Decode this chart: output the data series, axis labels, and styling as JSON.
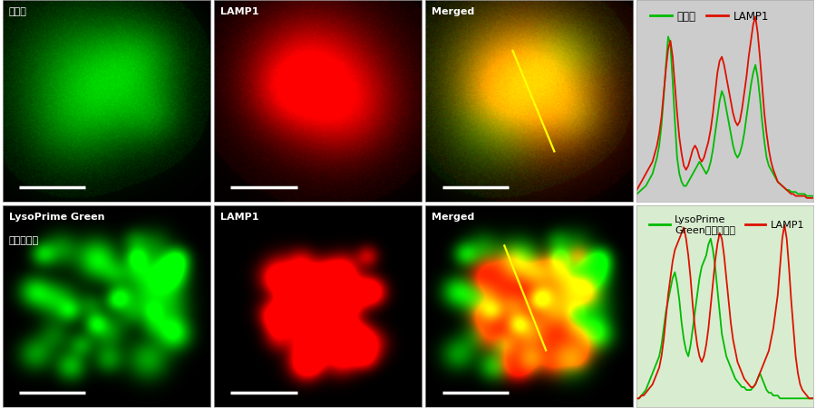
{
  "top_bg": "#cccccc",
  "bottom_bg": "#d8ecd0",
  "top_legend": {
    "green_label": "既存品",
    "red_label": "LAMP1"
  },
  "bottom_legend": {
    "green_label": "LysoPrime\nGreen（本製品）",
    "red_label": "LAMP1"
  },
  "top_green_line": [
    4,
    5,
    6,
    7,
    8,
    10,
    12,
    14,
    18,
    22,
    28,
    38,
    52,
    68,
    82,
    78,
    60,
    40,
    22,
    14,
    10,
    8,
    8,
    10,
    12,
    14,
    16,
    18,
    20,
    18,
    16,
    14,
    16,
    20,
    26,
    34,
    42,
    50,
    55,
    52,
    46,
    40,
    34,
    28,
    24,
    22,
    24,
    28,
    34,
    42,
    50,
    58,
    64,
    68,
    62,
    52,
    40,
    30,
    22,
    18,
    16,
    14,
    12,
    10,
    9,
    8,
    7,
    6,
    6,
    5,
    5,
    5,
    4,
    4,
    4,
    4,
    3,
    3,
    3,
    3
  ],
  "top_red_line": [
    6,
    8,
    10,
    12,
    14,
    16,
    18,
    20,
    24,
    28,
    34,
    42,
    54,
    66,
    76,
    80,
    72,
    58,
    44,
    32,
    24,
    18,
    16,
    18,
    22,
    26,
    28,
    26,
    22,
    20,
    22,
    26,
    30,
    36,
    44,
    54,
    64,
    70,
    72,
    68,
    62,
    56,
    50,
    44,
    40,
    38,
    40,
    46,
    54,
    62,
    72,
    80,
    88,
    92,
    84,
    72,
    58,
    44,
    34,
    26,
    20,
    16,
    13,
    10,
    9,
    8,
    7,
    6,
    5,
    4,
    4,
    3,
    3,
    3,
    3,
    3,
    2,
    2,
    2,
    2
  ],
  "bottom_green_line": [
    3,
    3,
    4,
    5,
    6,
    8,
    10,
    12,
    14,
    16,
    18,
    22,
    28,
    34,
    38,
    42,
    46,
    48,
    44,
    38,
    30,
    24,
    20,
    18,
    22,
    28,
    34,
    40,
    46,
    50,
    52,
    54,
    58,
    60,
    56,
    50,
    42,
    34,
    26,
    22,
    18,
    16,
    14,
    12,
    10,
    9,
    8,
    7,
    7,
    6,
    6,
    6,
    7,
    8,
    10,
    12,
    10,
    8,
    6,
    5,
    5,
    4,
    4,
    4,
    3,
    3,
    3,
    3,
    3,
    3,
    3,
    3,
    3,
    3,
    3,
    3,
    3,
    3,
    3,
    3
  ],
  "bottom_red_line": [
    3,
    3,
    4,
    4,
    5,
    6,
    7,
    8,
    10,
    12,
    14,
    18,
    24,
    32,
    40,
    46,
    52,
    56,
    58,
    60,
    62,
    64,
    60,
    54,
    46,
    36,
    28,
    22,
    18,
    16,
    18,
    22,
    28,
    36,
    44,
    52,
    58,
    62,
    60,
    54,
    46,
    38,
    30,
    24,
    20,
    16,
    14,
    12,
    10,
    9,
    8,
    7,
    7,
    8,
    10,
    12,
    14,
    16,
    18,
    20,
    24,
    28,
    34,
    40,
    50,
    60,
    65,
    60,
    50,
    38,
    28,
    18,
    12,
    8,
    6,
    5,
    4,
    3,
    3,
    3
  ],
  "green_color": "#00bb00",
  "red_color": "#dd1100",
  "line_width": 1.3,
  "top_row_labels": [
    "既存品",
    "LAMP1",
    "Merged"
  ],
  "bottom_row_label_0a": "LysoPrime Green",
  "bottom_row_label_0b": "（本製品）",
  "bottom_row_label_1": "LAMP1",
  "bottom_row_label_2": "Merged"
}
